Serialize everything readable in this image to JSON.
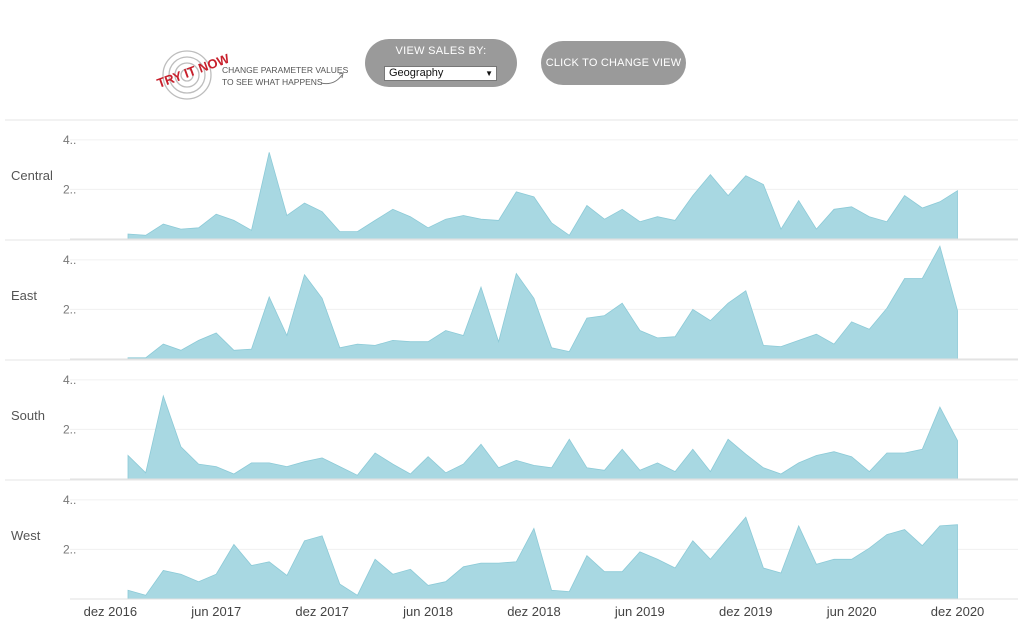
{
  "header": {
    "badge_text": "TRY IT NOW",
    "hint_line1": "CHANGE PARAMETER VALUES",
    "hint_line2": "TO SEE WHAT HAPPENS",
    "param_title": "VIEW SALES BY:",
    "param_value": "Geography",
    "change_view_label": "CLICK TO CHANGE VIEW",
    "badge_color": "#c8202c",
    "button_color": "#9a9a9a"
  },
  "chart_data": {
    "type": "area",
    "color": "#a8d8e2",
    "x_ticks": [
      "dez 2016",
      "jun 2017",
      "dez 2017",
      "jun 2018",
      "dez 2018",
      "jun 2019",
      "dez 2019",
      "jun 2020",
      "dez 2020"
    ],
    "x_tick_months": [
      0,
      6,
      12,
      18,
      24,
      30,
      36,
      42,
      48
    ],
    "y_ticks": [
      "2..",
      "4.."
    ],
    "y_tick_values": [
      2,
      4
    ],
    "ylim": [
      0,
      4.6
    ],
    "x_start_label": "jan 2017",
    "series": [
      {
        "name": "Central",
        "values": [
          0.2,
          0.15,
          0.6,
          0.4,
          0.45,
          1.0,
          0.75,
          0.35,
          3.5,
          0.95,
          1.45,
          1.1,
          0.3,
          0.3,
          0.75,
          1.2,
          0.9,
          0.45,
          0.8,
          0.95,
          0.8,
          0.75,
          1.9,
          1.7,
          0.65,
          0.15,
          1.35,
          0.8,
          1.2,
          0.7,
          0.9,
          0.75,
          1.75,
          2.6,
          1.75,
          2.55,
          2.2,
          0.4,
          1.55,
          0.4,
          1.2,
          1.3,
          0.9,
          0.7,
          1.75,
          1.25,
          1.5,
          1.95
        ]
      },
      {
        "name": "East",
        "values": [
          0.05,
          0.05,
          0.6,
          0.35,
          0.75,
          1.05,
          0.35,
          0.4,
          2.5,
          0.95,
          3.4,
          2.45,
          0.45,
          0.6,
          0.55,
          0.75,
          0.7,
          0.7,
          1.15,
          0.95,
          2.9,
          0.7,
          3.45,
          2.45,
          0.45,
          0.3,
          1.65,
          1.75,
          2.25,
          1.15,
          0.85,
          0.9,
          2.0,
          1.55,
          2.25,
          2.75,
          0.55,
          0.5,
          0.75,
          1.0,
          0.6,
          1.5,
          1.2,
          2.05,
          3.25,
          3.25,
          4.55,
          1.95
        ]
      },
      {
        "name": "South",
        "values": [
          0.95,
          0.25,
          3.35,
          1.3,
          0.6,
          0.5,
          0.2,
          0.65,
          0.65,
          0.5,
          0.7,
          0.85,
          0.5,
          0.15,
          1.05,
          0.6,
          0.2,
          0.9,
          0.25,
          0.6,
          1.4,
          0.45,
          0.75,
          0.55,
          0.45,
          1.6,
          0.45,
          0.35,
          1.2,
          0.35,
          0.65,
          0.3,
          1.2,
          0.3,
          1.6,
          1.0,
          0.45,
          0.2,
          0.65,
          0.95,
          1.1,
          0.9,
          0.3,
          1.05,
          1.05,
          1.2,
          2.9,
          1.55
        ]
      },
      {
        "name": "West",
        "values": [
          0.35,
          0.15,
          1.15,
          1.0,
          0.7,
          1.0,
          2.2,
          1.35,
          1.5,
          0.95,
          2.35,
          2.55,
          0.6,
          0.15,
          1.6,
          1.0,
          1.2,
          0.55,
          0.7,
          1.3,
          1.45,
          1.45,
          1.5,
          2.85,
          0.35,
          0.3,
          1.75,
          1.1,
          1.1,
          1.9,
          1.6,
          1.25,
          2.35,
          1.6,
          2.45,
          3.3,
          1.25,
          1.05,
          2.95,
          1.4,
          1.6,
          1.6,
          2.05,
          2.6,
          2.8,
          2.15,
          2.95,
          3.0
        ]
      }
    ]
  }
}
